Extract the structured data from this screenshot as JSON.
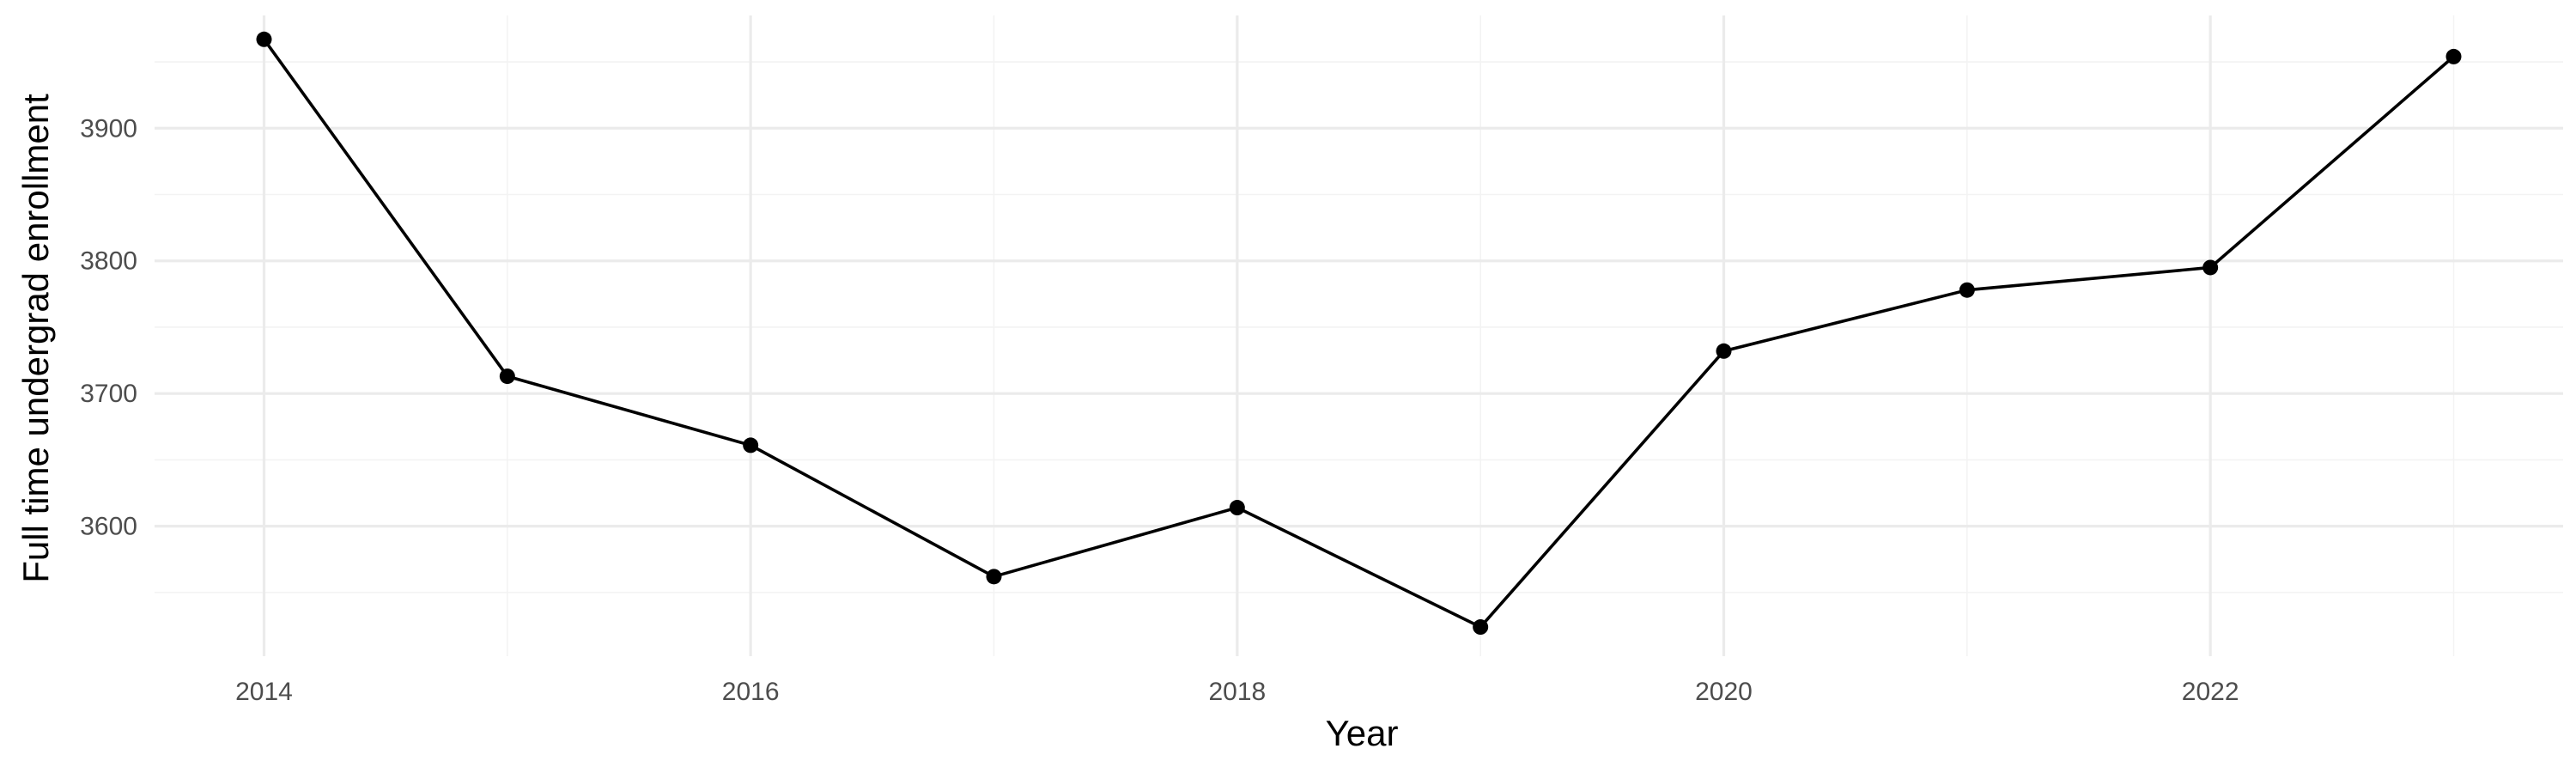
{
  "chart_data": {
    "type": "line",
    "title": "",
    "xlabel": "Year",
    "ylabel": "Full time undergrad enrollment",
    "xlim": [
      2013.55,
      2023.45
    ],
    "ylim": [
      3502,
      3985
    ],
    "x_major_ticks": [
      2014,
      2016,
      2018,
      2020,
      2022
    ],
    "x_minor_ticks": [
      2015,
      2017,
      2019,
      2021,
      2023
    ],
    "y_major_ticks": [
      3600,
      3700,
      3800,
      3900
    ],
    "y_minor_ticks": [
      3550,
      3650,
      3750,
      3850,
      3950
    ],
    "x_tick_labels": [
      "2014",
      "2016",
      "2018",
      "2020",
      "2022"
    ],
    "y_tick_labels": [
      "3600",
      "3700",
      "3800",
      "3900"
    ],
    "grid": true,
    "legend": false,
    "line_color": "#000000",
    "series": [
      {
        "x": [
          2014,
          2015,
          2016,
          2017,
          2018,
          2019,
          2020,
          2021,
          2022,
          2023
        ],
        "values": [
          3967,
          3713,
          3661,
          3562,
          3614,
          3524,
          3732,
          3778,
          3795,
          3954
        ]
      }
    ]
  }
}
